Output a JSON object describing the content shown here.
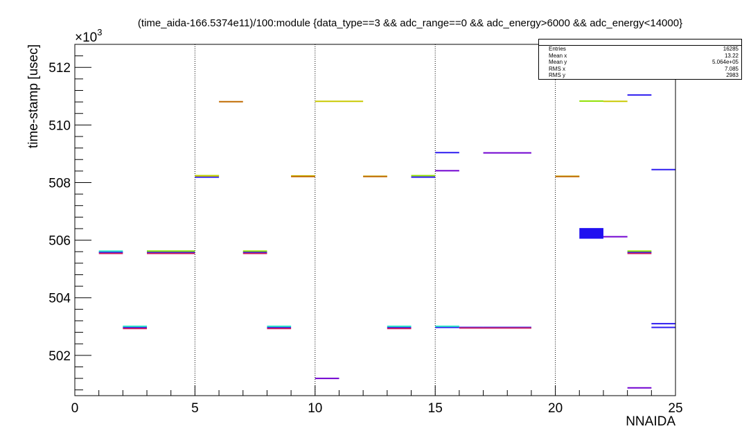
{
  "chart_data": {
    "type": "scatter",
    "title": "(time_aida-166.5374e11)/100:module {data_type==3 && adc_range==0  && adc_energy>6000 && adc_energy<14000}",
    "xlabel": "NNAIDA",
    "ylabel": "time-stamp [usec]",
    "y_exponent_label": "×10",
    "y_exponent_power": "3",
    "xlim": [
      0,
      25
    ],
    "ylim": [
      500.6,
      512.8
    ],
    "x_ticks": [
      "0",
      "5",
      "10",
      "15",
      "20",
      "25"
    ],
    "y_ticks": [
      "502",
      "504",
      "506",
      "508",
      "510",
      "512"
    ],
    "grid_x": true,
    "grid_y": false,
    "stats": [
      {
        "label": "Entries",
        "value": "16285"
      },
      {
        "label": "Mean x",
        "value": "13.22"
      },
      {
        "label": "Mean y",
        "value": "5.064e+05"
      },
      {
        "label": "RMS x",
        "value": "7.085"
      },
      {
        "label": "RMS y",
        "value": "2983"
      }
    ],
    "series": [
      {
        "color": "#2d1cf0",
        "segments": [
          [
            1,
            2,
            505.58
          ],
          [
            2,
            3,
            502.97
          ],
          [
            3,
            5,
            505.58
          ],
          [
            5,
            6,
            508.19
          ],
          [
            7,
            8,
            505.58
          ],
          [
            8,
            9,
            502.97
          ],
          [
            13,
            14,
            502.97
          ],
          [
            14,
            15,
            508.19
          ],
          [
            15,
            16,
            509.04
          ],
          [
            15,
            16,
            502.97
          ],
          [
            16,
            17,
            502.97
          ],
          [
            17,
            19,
            502.97
          ],
          [
            23,
            24,
            511.04
          ],
          [
            23,
            24,
            505.58
          ],
          [
            24,
            25,
            508.45
          ],
          [
            24,
            25,
            503.1
          ],
          [
            24,
            25,
            502.97
          ]
        ]
      },
      {
        "color": "#2ee6c8",
        "segments": [
          [
            1,
            2,
            505.62
          ],
          [
            2,
            3,
            503.01
          ],
          [
            3,
            5,
            505.62
          ],
          [
            8,
            9,
            503.01
          ],
          [
            13,
            14,
            503.01
          ],
          [
            15,
            16,
            503.01
          ]
        ]
      },
      {
        "color": "#8fe000",
        "segments": [
          [
            3,
            5,
            505.62
          ],
          [
            5,
            6,
            508.24
          ],
          [
            7,
            8,
            505.62
          ],
          [
            14,
            15,
            508.24
          ],
          [
            21,
            22,
            510.83
          ],
          [
            23,
            24,
            505.62
          ]
        ]
      },
      {
        "color": "#c8c800",
        "segments": [
          [
            5,
            6,
            508.23
          ],
          [
            9,
            10,
            508.23
          ],
          [
            10,
            12,
            510.82
          ],
          [
            12,
            13,
            508.22
          ],
          [
            20,
            21,
            508.22
          ],
          [
            22,
            23,
            510.82
          ]
        ]
      },
      {
        "color": "#c06a00",
        "segments": [
          [
            6,
            7,
            510.81
          ],
          [
            9,
            10,
            508.21
          ],
          [
            12,
            13,
            508.21
          ],
          [
            20,
            21,
            508.21
          ]
        ]
      },
      {
        "color": "#7000d0",
        "segments": [
          [
            10,
            11,
            501.2
          ],
          [
            15,
            16,
            508.41
          ],
          [
            17,
            19,
            509.03
          ],
          [
            22,
            23,
            506.12
          ],
          [
            23,
            24,
            500.87
          ]
        ]
      },
      {
        "color": "#cc2266",
        "segments": [
          [
            1,
            2,
            505.54
          ],
          [
            2,
            3,
            502.93
          ],
          [
            3,
            5,
            505.54
          ],
          [
            7,
            8,
            505.54
          ],
          [
            8,
            9,
            502.93
          ],
          [
            13,
            14,
            502.93
          ],
          [
            16,
            19,
            502.95
          ],
          [
            23,
            24,
            505.54
          ]
        ]
      }
    ],
    "blocks": [
      {
        "x0": 21,
        "x1": 22,
        "y0": 506.05,
        "y1": 506.42,
        "color": "#2010f0"
      }
    ]
  }
}
